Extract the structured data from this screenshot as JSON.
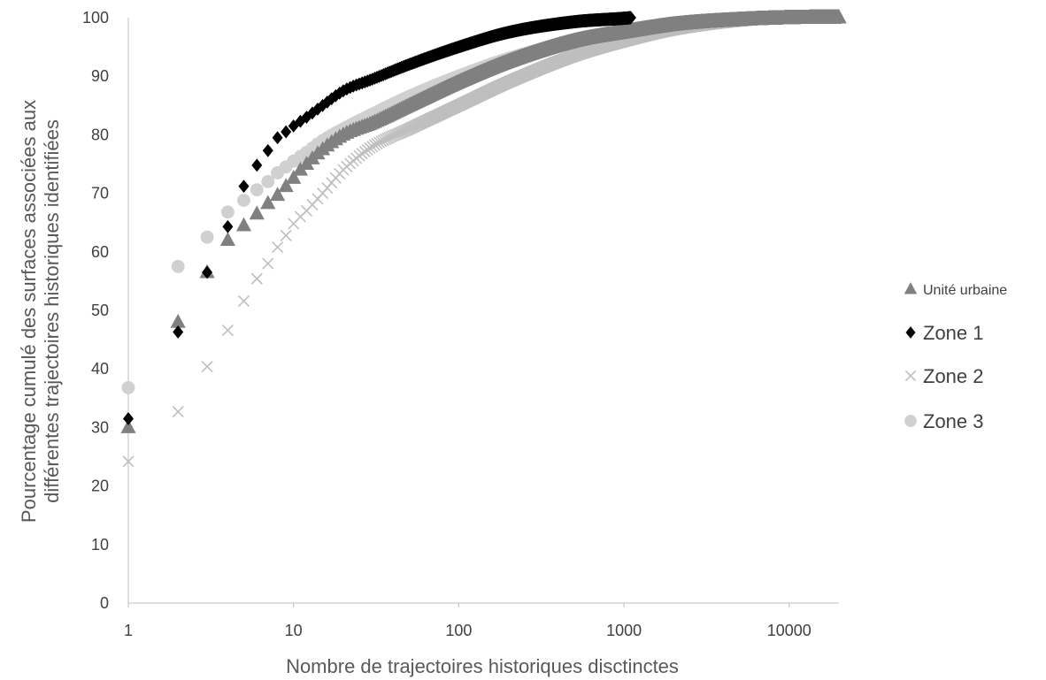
{
  "chart_data": {
    "type": "scatter",
    "title": "",
    "xlabel": "Nombre de trajectoires historiques disctinctes",
    "ylabel": [
      "Pourcentage cumulé des surfaces associées aux",
      "différentes trajectoires historiques identifiées"
    ],
    "x_scale": "log",
    "xlim": [
      1,
      20000
    ],
    "ylim": [
      0,
      100
    ],
    "x_ticks": [
      1,
      10,
      100,
      1000,
      10000
    ],
    "x_tick_labels": [
      "1",
      "10",
      "100",
      "1000",
      "10000"
    ],
    "y_ticks": [
      0,
      10,
      20,
      30,
      40,
      50,
      60,
      70,
      80,
      90,
      100
    ],
    "y_tick_labels": [
      "0",
      "10",
      "20",
      "30",
      "40",
      "50",
      "60",
      "70",
      "80",
      "90",
      "100"
    ],
    "grid": false,
    "legend_position": "right",
    "series": [
      {
        "name": "Unité urbaine",
        "marker": "triangle",
        "color": "#808080",
        "x_max": 20000,
        "points": [
          [
            1,
            30
          ],
          [
            2,
            48
          ],
          [
            3,
            56.5
          ],
          [
            4,
            62
          ],
          [
            5,
            64.5
          ],
          [
            6,
            66.5
          ],
          [
            7,
            68.3
          ],
          [
            8,
            69.7
          ],
          [
            9,
            71.2
          ],
          [
            10,
            72.6
          ],
          [
            11,
            74
          ],
          [
            12,
            75
          ],
          [
            15,
            77.5
          ],
          [
            20,
            80
          ],
          [
            30,
            82
          ],
          [
            50,
            85
          ],
          [
            100,
            89
          ],
          [
            200,
            92.5
          ],
          [
            500,
            96
          ],
          [
            1000,
            97.5
          ],
          [
            2000,
            98.8
          ],
          [
            5000,
            99.6
          ],
          [
            10000,
            99.9
          ],
          [
            20000,
            100
          ]
        ]
      },
      {
        "name": "Zone 1",
        "marker": "diamond",
        "color": "#000000",
        "x_max": 1100,
        "points": [
          [
            1,
            31.5
          ],
          [
            2,
            46.3
          ],
          [
            3,
            56.5
          ],
          [
            4,
            64.3
          ],
          [
            5,
            71.2
          ],
          [
            6,
            74.8
          ],
          [
            7,
            77.3
          ],
          [
            8,
            79.5
          ],
          [
            9,
            80.5
          ],
          [
            10,
            81.5
          ],
          [
            12,
            83
          ],
          [
            15,
            85
          ],
          [
            20,
            87.5
          ],
          [
            30,
            89.5
          ],
          [
            50,
            92
          ],
          [
            100,
            95
          ],
          [
            200,
            97.5
          ],
          [
            500,
            99.3
          ],
          [
            1000,
            99.9
          ],
          [
            1100,
            100
          ]
        ]
      },
      {
        "name": "Zone 2",
        "marker": "x",
        "color": "#bfbfbf",
        "x_max": 9000,
        "points": [
          [
            1,
            24.2
          ],
          [
            2,
            32.7
          ],
          [
            3,
            40.4
          ],
          [
            4,
            46.6
          ],
          [
            5,
            51.6
          ],
          [
            6,
            55.4
          ],
          [
            7,
            58
          ],
          [
            8,
            60.8
          ],
          [
            9,
            62.8
          ],
          [
            10,
            64.8
          ],
          [
            11,
            66
          ],
          [
            12,
            67
          ],
          [
            15,
            70
          ],
          [
            20,
            74
          ],
          [
            30,
            78
          ],
          [
            50,
            81
          ],
          [
            100,
            85
          ],
          [
            200,
            89
          ],
          [
            500,
            93.5
          ],
          [
            1000,
            96
          ],
          [
            2000,
            98
          ],
          [
            5000,
            99.5
          ],
          [
            9000,
            100
          ]
        ]
      },
      {
        "name": "Zone 3",
        "marker": "circle",
        "color": "#d0d0d0",
        "x_max": 9000,
        "points": [
          [
            1,
            36.8
          ],
          [
            2,
            57.5
          ],
          [
            3,
            62.5
          ],
          [
            4,
            66.8
          ],
          [
            5,
            68.8
          ],
          [
            6,
            70.6
          ],
          [
            7,
            72
          ],
          [
            8,
            73.5
          ],
          [
            9,
            74.5
          ],
          [
            10,
            75.5
          ],
          [
            12,
            77
          ],
          [
            15,
            79
          ],
          [
            20,
            81
          ],
          [
            30,
            83.5
          ],
          [
            50,
            86.5
          ],
          [
            100,
            90
          ],
          [
            200,
            93
          ],
          [
            500,
            96
          ],
          [
            1000,
            97.8
          ],
          [
            2000,
            99
          ],
          [
            5000,
            99.8
          ],
          [
            9000,
            100
          ]
        ]
      }
    ]
  }
}
